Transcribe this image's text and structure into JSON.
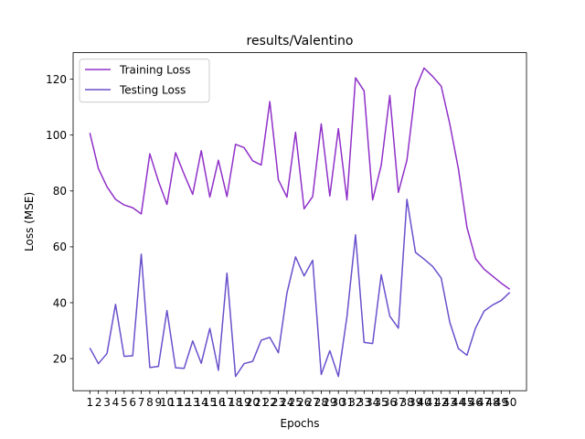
{
  "chart_data": {
    "type": "line",
    "title": "results/Valentino",
    "xlabel": "Epochs",
    "ylabel": "Loss (MSE)",
    "xlim": [
      -0.95,
      51.95
    ],
    "ylim": [
      8.5,
      129.5
    ],
    "x": [
      1,
      2,
      3,
      4,
      5,
      6,
      7,
      8,
      9,
      10,
      11,
      12,
      13,
      14,
      15,
      16,
      17,
      18,
      19,
      20,
      21,
      22,
      23,
      24,
      25,
      26,
      27,
      28,
      29,
      30,
      31,
      32,
      33,
      34,
      35,
      36,
      37,
      38,
      39,
      40,
      41,
      42,
      43,
      44,
      45,
      46,
      47,
      48,
      49,
      50
    ],
    "xtick_labels": [
      "1",
      "2",
      "3",
      "4",
      "5",
      "6",
      "7",
      "8",
      "9",
      "10",
      "11",
      "12",
      "13",
      "14",
      "15",
      "16",
      "17",
      "18",
      "19",
      "20",
      "21",
      "22",
      "23",
      "24",
      "25",
      "26",
      "27",
      "28",
      "29",
      "30",
      "31",
      "32",
      "33",
      "34",
      "35",
      "36",
      "37",
      "38",
      "39",
      "40",
      "41",
      "42",
      "43",
      "44",
      "45",
      "46",
      "47",
      "48",
      "49",
      "50"
    ],
    "yticks": [
      20,
      40,
      60,
      80,
      100,
      120
    ],
    "grid": false,
    "legend_position": "top-left",
    "series": [
      {
        "name": "Training Loss",
        "color": "#9030c8",
        "values": [
          100.8,
          88.0,
          81.5,
          77.0,
          75.0,
          74.0,
          71.8,
          93.3,
          83.5,
          75.2,
          93.7,
          86.0,
          78.8,
          94.4,
          77.8,
          91.0,
          78.0,
          96.7,
          95.5,
          90.8,
          89.3,
          112.0,
          84.0,
          77.8,
          101.0,
          73.6,
          78.0,
          104.0,
          78.2,
          102.3,
          76.8,
          120.5,
          115.8,
          76.8,
          89.2,
          114.2,
          79.5,
          91.0,
          116.5,
          124.0,
          121.0,
          117.5,
          104.0,
          88.0,
          67.0,
          55.8,
          52.0,
          49.5,
          47.0,
          44.8
        ]
      },
      {
        "name": "Testing Loss",
        "color": "#6a50cc",
        "values": [
          23.8,
          18.2,
          21.8,
          39.4,
          20.8,
          21.0,
          57.4,
          16.8,
          17.2,
          37.2,
          16.7,
          16.5,
          26.3,
          18.3,
          30.8,
          15.8,
          50.6,
          13.6,
          18.2,
          19.0,
          26.6,
          27.6,
          22.1,
          43.5,
          56.4,
          49.6,
          55.2,
          14.3,
          22.8,
          13.6,
          35.0,
          64.3,
          25.8,
          25.4,
          50.0,
          35.2,
          30.9,
          77.0,
          58.0,
          55.6,
          53.0,
          48.8,
          33.0,
          23.6,
          21.2,
          30.9,
          37.0,
          39.2,
          40.8,
          43.7
        ]
      }
    ]
  }
}
